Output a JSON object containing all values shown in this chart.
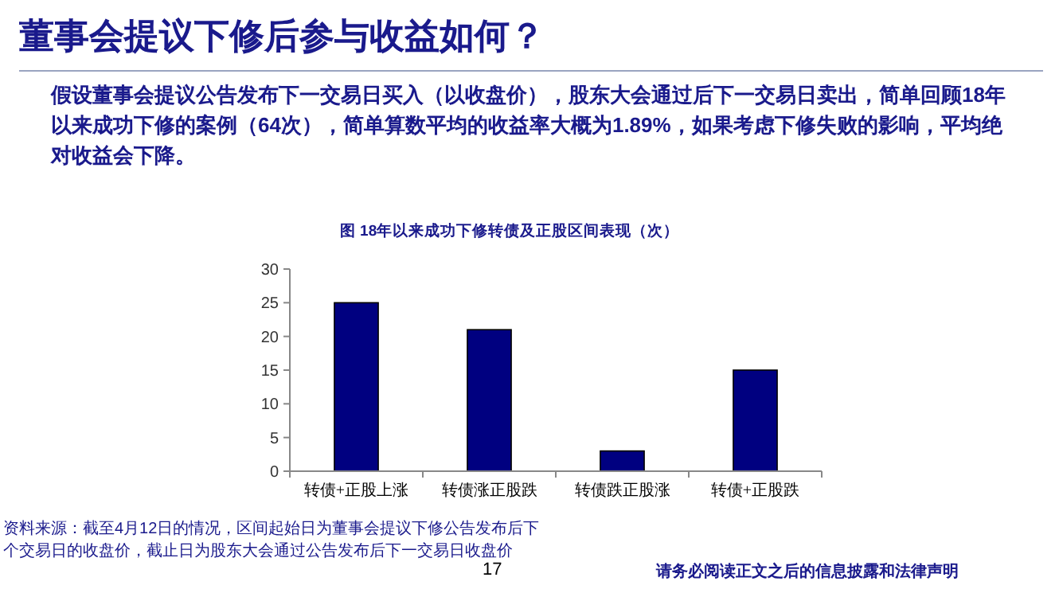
{
  "chart_data": {
    "type": "bar",
    "title": "董事会提议下修后参与收益如何？",
    "subtitle": "假设董事会提议公告发布下一交易日买入（以收盘价），股东大会通过后下一交易日卖出，简单回顾18年以来成功下修的案例（64次），简单算数平均的收益率大概为1.89%，如果考虑下修失败的影响，平均绝对收益会下降。",
    "annotations": [
      "图 18年以来成功下修转债及正股区间表现（次）",
      "资料来源：截至4月12日的情况，区间起始日为董事会提议下修公告发布后下个交易日的收盘价，截止日为股东大会通过公告发布后下一交易日收盘价",
      "17",
      "请务必阅读正文之后的信息披露和法律声明"
    ],
    "categories": [
      "转债+正股上涨",
      "转债涨正股跌",
      "转债跌正股涨",
      "转债+正股跌"
    ],
    "values": [
      25,
      21,
      3,
      15
    ],
    "color": "#000080",
    "ylim": [
      0,
      30
    ],
    "yticks": [
      0,
      5,
      10,
      15,
      20,
      25,
      30
    ]
  }
}
